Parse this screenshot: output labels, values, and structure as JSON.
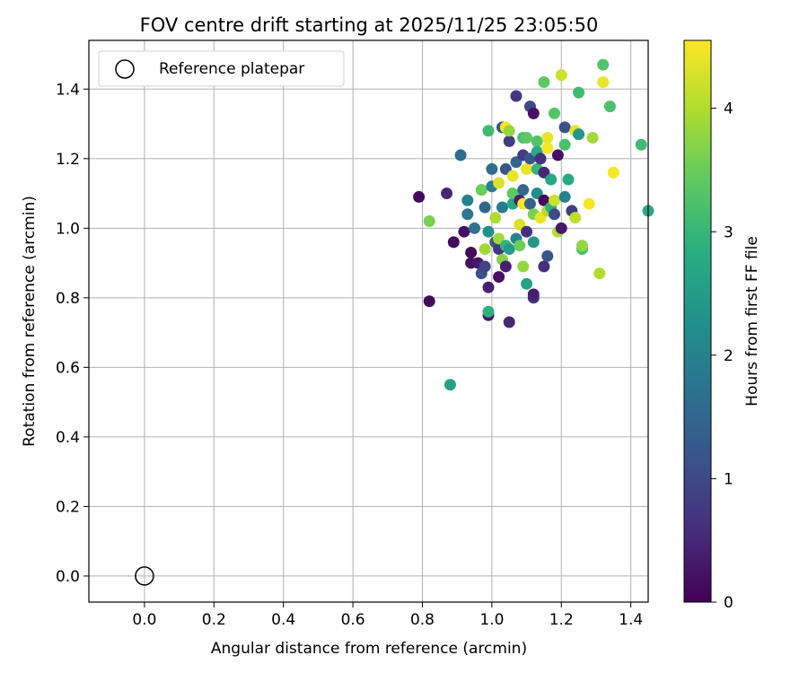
{
  "chart_data": {
    "type": "scatter",
    "title": "FOV centre drift starting at 2025/11/25 23:05:50",
    "xlabel": "Angular distance from reference (arcmin)",
    "ylabel": "Rotation from reference (arcmin)",
    "xlim": [
      -0.16,
      1.45
    ],
    "ylim": [
      -0.075,
      1.54
    ],
    "xticks": [
      "0.0",
      "0.2",
      "0.4",
      "0.6",
      "0.8",
      "1.0",
      "1.2",
      "1.4"
    ],
    "yticks": [
      "0.0",
      "0.2",
      "0.4",
      "0.6",
      "0.8",
      "1.0",
      "1.2",
      "1.4"
    ],
    "grid": true,
    "legend": {
      "placement": "top-left",
      "entries": [
        "Reference platepar"
      ]
    },
    "reference_point": {
      "x": 0.0,
      "y": 0.0
    },
    "colorbar": {
      "label": "Hours from first FF file",
      "colormap": "viridis",
      "range": [
        0,
        4.55
      ],
      "ticks": [
        "0",
        "1",
        "2",
        "3",
        "4"
      ]
    },
    "points": [
      {
        "x": 0.79,
        "y": 1.09,
        "c": 0.1
      },
      {
        "x": 0.82,
        "y": 0.79,
        "c": 0.1
      },
      {
        "x": 0.82,
        "y": 1.02,
        "c": 3.6
      },
      {
        "x": 0.87,
        "y": 1.1,
        "c": 0.5
      },
      {
        "x": 0.88,
        "y": 0.55,
        "c": 2.6
      },
      {
        "x": 0.89,
        "y": 0.96,
        "c": 0.1
      },
      {
        "x": 0.91,
        "y": 1.21,
        "c": 1.6
      },
      {
        "x": 0.92,
        "y": 0.99,
        "c": 0.2
      },
      {
        "x": 0.93,
        "y": 1.08,
        "c": 2.0
      },
      {
        "x": 0.93,
        "y": 1.04,
        "c": 1.8
      },
      {
        "x": 0.94,
        "y": 0.93,
        "c": 0.1
      },
      {
        "x": 0.94,
        "y": 0.9,
        "c": 0.2
      },
      {
        "x": 0.95,
        "y": 1.0,
        "c": 1.7
      },
      {
        "x": 0.96,
        "y": 0.9,
        "c": 0.3
      },
      {
        "x": 0.97,
        "y": 1.11,
        "c": 3.5
      },
      {
        "x": 0.97,
        "y": 0.87,
        "c": 1.1
      },
      {
        "x": 0.98,
        "y": 0.94,
        "c": 3.9
      },
      {
        "x": 0.98,
        "y": 1.06,
        "c": 1.5
      },
      {
        "x": 0.98,
        "y": 0.89,
        "c": 0.9
      },
      {
        "x": 0.99,
        "y": 0.75,
        "c": 0.3
      },
      {
        "x": 0.99,
        "y": 0.83,
        "c": 0.4
      },
      {
        "x": 0.99,
        "y": 0.76,
        "c": 2.9
      },
      {
        "x": 0.99,
        "y": 1.28,
        "c": 3.1
      },
      {
        "x": 0.99,
        "y": 0.99,
        "c": 2.3
      },
      {
        "x": 1.0,
        "y": 1.17,
        "c": 1.6
      },
      {
        "x": 1.0,
        "y": 1.12,
        "c": 1.9
      },
      {
        "x": 1.01,
        "y": 1.03,
        "c": 4.0
      },
      {
        "x": 1.01,
        "y": 0.96,
        "c": 1.2
      },
      {
        "x": 1.02,
        "y": 0.86,
        "c": 0.2
      },
      {
        "x": 1.02,
        "y": 1.13,
        "c": 4.3
      },
      {
        "x": 1.02,
        "y": 0.94,
        "c": 0.7
      },
      {
        "x": 1.02,
        "y": 0.97,
        "c": 3.9
      },
      {
        "x": 1.03,
        "y": 0.91,
        "c": 3.7
      },
      {
        "x": 1.03,
        "y": 1.29,
        "c": 1.2
      },
      {
        "x": 1.03,
        "y": 1.06,
        "c": 1.9
      },
      {
        "x": 1.04,
        "y": 0.89,
        "c": 0.4
      },
      {
        "x": 1.04,
        "y": 0.95,
        "c": 3.0
      },
      {
        "x": 1.04,
        "y": 1.17,
        "c": 1.2
      },
      {
        "x": 1.04,
        "y": 1.29,
        "c": 4.5
      },
      {
        "x": 1.05,
        "y": 1.25,
        "c": 0.8
      },
      {
        "x": 1.05,
        "y": 1.28,
        "c": 3.8
      },
      {
        "x": 1.05,
        "y": 0.94,
        "c": 2.5
      },
      {
        "x": 1.05,
        "y": 0.73,
        "c": 0.5
      },
      {
        "x": 1.06,
        "y": 1.07,
        "c": 2.7
      },
      {
        "x": 1.06,
        "y": 1.15,
        "c": 4.4
      },
      {
        "x": 1.06,
        "y": 1.1,
        "c": 3.4
      },
      {
        "x": 1.07,
        "y": 1.38,
        "c": 0.7
      },
      {
        "x": 1.07,
        "y": 1.19,
        "c": 1.5
      },
      {
        "x": 1.07,
        "y": 0.97,
        "c": 2.1
      },
      {
        "x": 1.08,
        "y": 1.01,
        "c": 4.3
      },
      {
        "x": 1.08,
        "y": 1.08,
        "c": 0.4
      },
      {
        "x": 1.08,
        "y": 0.95,
        "c": 3.5
      },
      {
        "x": 1.09,
        "y": 1.21,
        "c": 0.8
      },
      {
        "x": 1.09,
        "y": 1.11,
        "c": 1.5
      },
      {
        "x": 1.09,
        "y": 0.89,
        "c": 3.8
      },
      {
        "x": 1.09,
        "y": 1.26,
        "c": 3.2
      },
      {
        "x": 1.09,
        "y": 1.07,
        "c": 4.5
      },
      {
        "x": 1.1,
        "y": 1.17,
        "c": 4.4
      },
      {
        "x": 1.1,
        "y": 0.99,
        "c": 0.6
      },
      {
        "x": 1.1,
        "y": 0.84,
        "c": 2.6
      },
      {
        "x": 1.1,
        "y": 1.26,
        "c": 3.4
      },
      {
        "x": 1.11,
        "y": 1.35,
        "c": 1.0
      },
      {
        "x": 1.11,
        "y": 1.2,
        "c": 1.2
      },
      {
        "x": 1.11,
        "y": 1.07,
        "c": 1.4
      },
      {
        "x": 1.12,
        "y": 1.33,
        "c": 0.2
      },
      {
        "x": 1.12,
        "y": 0.8,
        "c": 0.6
      },
      {
        "x": 1.12,
        "y": 1.04,
        "c": 3.6
      },
      {
        "x": 1.12,
        "y": 0.96,
        "c": 2.4
      },
      {
        "x": 1.12,
        "y": 0.81,
        "c": 0.4
      },
      {
        "x": 1.13,
        "y": 1.25,
        "c": 3.3
      },
      {
        "x": 1.13,
        "y": 1.17,
        "c": 3.0
      },
      {
        "x": 1.13,
        "y": 1.22,
        "c": 2.8
      },
      {
        "x": 1.13,
        "y": 1.1,
        "c": 2.2
      },
      {
        "x": 1.14,
        "y": 1.03,
        "c": 4.4
      },
      {
        "x": 1.14,
        "y": 1.2,
        "c": 0.6
      },
      {
        "x": 1.15,
        "y": 1.08,
        "c": 0.1
      },
      {
        "x": 1.15,
        "y": 0.89,
        "c": 0.6
      },
      {
        "x": 1.15,
        "y": 1.42,
        "c": 3.4
      },
      {
        "x": 1.15,
        "y": 1.16,
        "c": 0.5
      },
      {
        "x": 1.16,
        "y": 1.26,
        "c": 4.4
      },
      {
        "x": 1.16,
        "y": 0.92,
        "c": 1.2
      },
      {
        "x": 1.16,
        "y": 1.05,
        "c": 4.0
      },
      {
        "x": 1.16,
        "y": 1.23,
        "c": 4.5
      },
      {
        "x": 1.17,
        "y": 1.14,
        "c": 2.7
      },
      {
        "x": 1.17,
        "y": 1.06,
        "c": 2.9
      },
      {
        "x": 1.18,
        "y": 1.33,
        "c": 3.3
      },
      {
        "x": 1.18,
        "y": 1.08,
        "c": 4.2
      },
      {
        "x": 1.18,
        "y": 1.04,
        "c": 1.0
      },
      {
        "x": 1.19,
        "y": 1.21,
        "c": 0.2
      },
      {
        "x": 1.19,
        "y": 0.99,
        "c": 4.0
      },
      {
        "x": 1.2,
        "y": 1.44,
        "c": 4.2
      },
      {
        "x": 1.2,
        "y": 1.0,
        "c": 0.3
      },
      {
        "x": 1.21,
        "y": 1.29,
        "c": 1.1
      },
      {
        "x": 1.21,
        "y": 1.24,
        "c": 3.2
      },
      {
        "x": 1.21,
        "y": 1.09,
        "c": 2.0
      },
      {
        "x": 1.22,
        "y": 1.14,
        "c": 2.8
      },
      {
        "x": 1.23,
        "y": 1.05,
        "c": 0.8
      },
      {
        "x": 1.24,
        "y": 1.28,
        "c": 4.4
      },
      {
        "x": 1.24,
        "y": 1.03,
        "c": 4.1
      },
      {
        "x": 1.25,
        "y": 1.39,
        "c": 3.1
      },
      {
        "x": 1.25,
        "y": 1.27,
        "c": 2.4
      },
      {
        "x": 1.26,
        "y": 0.94,
        "c": 3.2
      },
      {
        "x": 1.26,
        "y": 0.95,
        "c": 3.8
      },
      {
        "x": 1.28,
        "y": 1.07,
        "c": 4.5
      },
      {
        "x": 1.29,
        "y": 1.26,
        "c": 3.9
      },
      {
        "x": 1.31,
        "y": 0.87,
        "c": 4.0
      },
      {
        "x": 1.32,
        "y": 1.42,
        "c": 4.4
      },
      {
        "x": 1.32,
        "y": 1.47,
        "c": 3.3
      },
      {
        "x": 1.34,
        "y": 1.35,
        "c": 3.2
      },
      {
        "x": 1.35,
        "y": 1.16,
        "c": 4.5
      },
      {
        "x": 1.43,
        "y": 1.24,
        "c": 3.1
      },
      {
        "x": 1.45,
        "y": 1.05,
        "c": 2.8
      }
    ]
  }
}
